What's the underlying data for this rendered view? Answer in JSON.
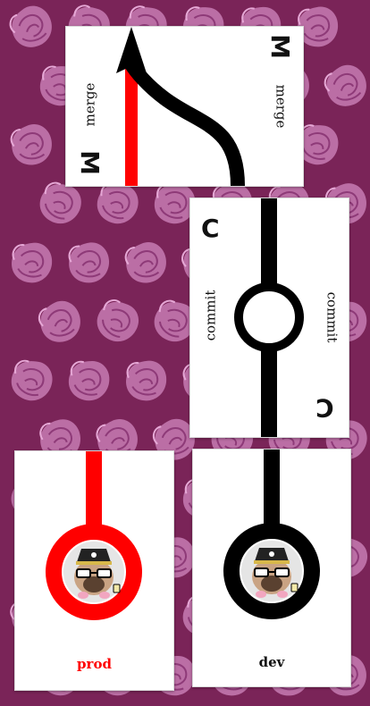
{
  "background": {
    "color": "#7a2458",
    "pattern_icon": "pink-rose-tile-icon",
    "pattern_color": "#c77bb3"
  },
  "cards": {
    "merge": {
      "letter": "M",
      "label_left": "merge",
      "label_right": "merge",
      "icon": "merge-arrow-icon",
      "colors": {
        "main": "#ff0000",
        "branch": "#000000"
      }
    },
    "commit": {
      "letter": "C",
      "label_left": "commit",
      "label_right": "commit",
      "icon": "commit-node-icon",
      "colors": {
        "line": "#000000"
      }
    },
    "prod": {
      "label": "prod",
      "icon": "pug-pirate-avatar-icon",
      "colors": {
        "ring": "#ff0000",
        "label": "#ff0000"
      }
    },
    "dev": {
      "label": "dev",
      "icon": "pug-pirate-avatar-icon",
      "colors": {
        "ring": "#000000",
        "label": "#111111"
      }
    }
  }
}
